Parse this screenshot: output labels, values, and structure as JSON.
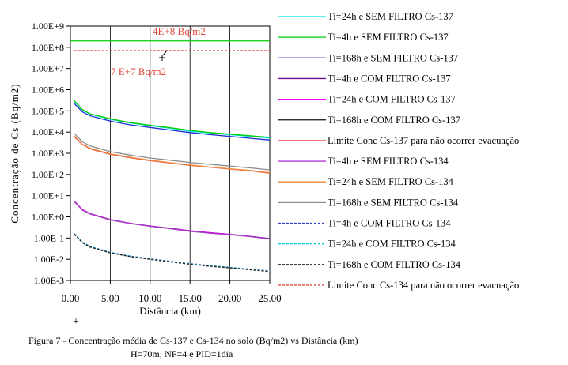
{
  "chart_data": {
    "type": "line",
    "xlabel": "Distância (km)",
    "ylabel": "Concentração de Cs (Bq/m2)",
    "y_scale": "log",
    "xlim": [
      0,
      25
    ],
    "ylim": [
      0.001,
      1000000000
    ],
    "x_ticks": [
      "0.00",
      "5.00",
      "10.00",
      "15.00",
      "20.00",
      "25.00"
    ],
    "y_ticks": [
      "1.00E-3",
      "1.00E-2",
      "1.00E-1",
      "1.00E+0",
      "1.00E+1",
      "1.00E+2",
      "1.00E+3",
      "1.00E+4",
      "1.00E+5",
      "1.00E+6",
      "1.00E+7",
      "1.00E+8",
      "1.00E+9"
    ],
    "grid": "vertical",
    "legend_position": "right",
    "x": [
      0.5,
      1.5,
      2.5,
      5,
      7.5,
      10,
      12.5,
      15,
      17.5,
      20,
      22.5,
      25
    ],
    "series": [
      {
        "name": "Ti=24h e SEM FILTRO Cs-137",
        "color": "#00e5ee",
        "dash": "solid",
        "values": [
          280000,
          110000,
          70000,
          40000,
          27000,
          20000,
          15000,
          11000,
          9000,
          7500,
          6300,
          5200
        ]
      },
      {
        "name": "Ti=4h e SEM FILTRO Cs-137",
        "color": "#00cc00",
        "dash": "solid",
        "values": [
          300000,
          115000,
          72000,
          42000,
          28000,
          21000,
          16000,
          12000,
          9500,
          8000,
          6700,
          5600
        ]
      },
      {
        "name": "Ti=168h e SEM FILTRO Cs-137",
        "color": "#1f2fd6",
        "dash": "solid",
        "values": [
          220000,
          90000,
          58000,
          33000,
          22000,
          16500,
          12500,
          9500,
          7600,
          6200,
          5100,
          4200
        ]
      },
      {
        "name": "Ti=4h e COM FILTRO Cs-137",
        "color": "#6a0d91",
        "dash": "solid",
        "values": [
          5.5,
          2.2,
          1.4,
          0.75,
          0.5,
          0.37,
          0.29,
          0.22,
          0.18,
          0.15,
          0.12,
          0.095
        ]
      },
      {
        "name": "Ti=24h e COM FILTRO Cs-137",
        "color": "#ff00ff",
        "dash": "solid",
        "values": [
          5.4,
          2.2,
          1.38,
          0.74,
          0.5,
          0.37,
          0.28,
          0.22,
          0.18,
          0.15,
          0.12,
          0.094
        ]
      },
      {
        "name": "Ti=168h e COM FILTRO Cs-137",
        "color": "#111111",
        "dash": "solid",
        "values": [
          5.3,
          2.1,
          1.35,
          0.73,
          0.49,
          0.36,
          0.28,
          0.21,
          0.17,
          0.145,
          0.118,
          0.092
        ]
      },
      {
        "name": "Limite Conc Cs-137 para não ocorrer evacuação",
        "color": "#e0483c",
        "dash": "solid",
        "values": [
          6000,
          2600,
          1600,
          900,
          620,
          450,
          350,
          270,
          220,
          180,
          150,
          115
        ]
      },
      {
        "name": "Ti=4h e SEM FILTRO Cs-134",
        "color": "#b03ad6",
        "dash": "solid",
        "values": [
          5.3,
          2.1,
          1.35,
          0.73,
          0.49,
          0.36,
          0.28,
          0.21,
          0.17,
          0.145,
          0.118,
          0.092
        ]
      },
      {
        "name": "Ti=24h e SEM FILTRO Cs-134",
        "color": "#f08a3c",
        "dash": "solid",
        "values": [
          6500,
          2700,
          1700,
          950,
          650,
          470,
          360,
          280,
          225,
          185,
          155,
          120
        ]
      },
      {
        "name": "Ti=168h e SEM FILTRO Cs-134",
        "color": "#8c8c8c",
        "dash": "solid",
        "values": [
          8500,
          3500,
          2200,
          1200,
          820,
          600,
          470,
          370,
          300,
          250,
          205,
          165
        ]
      },
      {
        "name": "Ti=4h e COM FILTRO Cs-134",
        "color": "#2a3fcf",
        "dash": "dashed",
        "values": [
          0.16,
          0.065,
          0.04,
          0.021,
          0.014,
          0.0105,
          0.008,
          0.0062,
          0.005,
          0.0041,
          0.0034,
          0.0028
        ]
      },
      {
        "name": "Ti=24h e COM FILTRO Cs-134",
        "color": "#00cccc",
        "dash": "dashed",
        "values": [
          0.155,
          0.063,
          0.039,
          0.0205,
          0.0137,
          0.0102,
          0.0078,
          0.006,
          0.0049,
          0.004,
          0.0033,
          0.0027
        ]
      },
      {
        "name": "Ti=168h e COM FILTRO Cs-134",
        "color": "#222222",
        "dash": "dashed",
        "values": [
          0.15,
          0.06,
          0.037,
          0.02,
          0.0133,
          0.0099,
          0.0076,
          0.0058,
          0.0047,
          0.0039,
          0.0032,
          0.0026
        ]
      },
      {
        "name": "Limite Conc Cs-134 para não ocorrer evacuação",
        "color": "#e0483c",
        "dash": "dashed",
        "values": [
          70000000,
          70000000,
          70000000,
          70000000,
          70000000,
          70000000,
          70000000,
          70000000,
          70000000,
          70000000,
          70000000,
          70000000
        ]
      }
    ],
    "reference_line_cs137": {
      "value": 200000000,
      "color": "#00cc00"
    },
    "annotations": [
      {
        "text": "4E+8 Bq/m2",
        "color": "#e0483c"
      },
      {
        "text": "7 E+7 Bq/m2",
        "color": "#e0483c"
      }
    ]
  },
  "caption": {
    "line1": "Figura 7 - Concentração média de Cs-137 e Cs-134 no solo (Bq/m2) vs Distância (km)",
    "line2": "H=70m; NF=4 e PID=1dia"
  }
}
